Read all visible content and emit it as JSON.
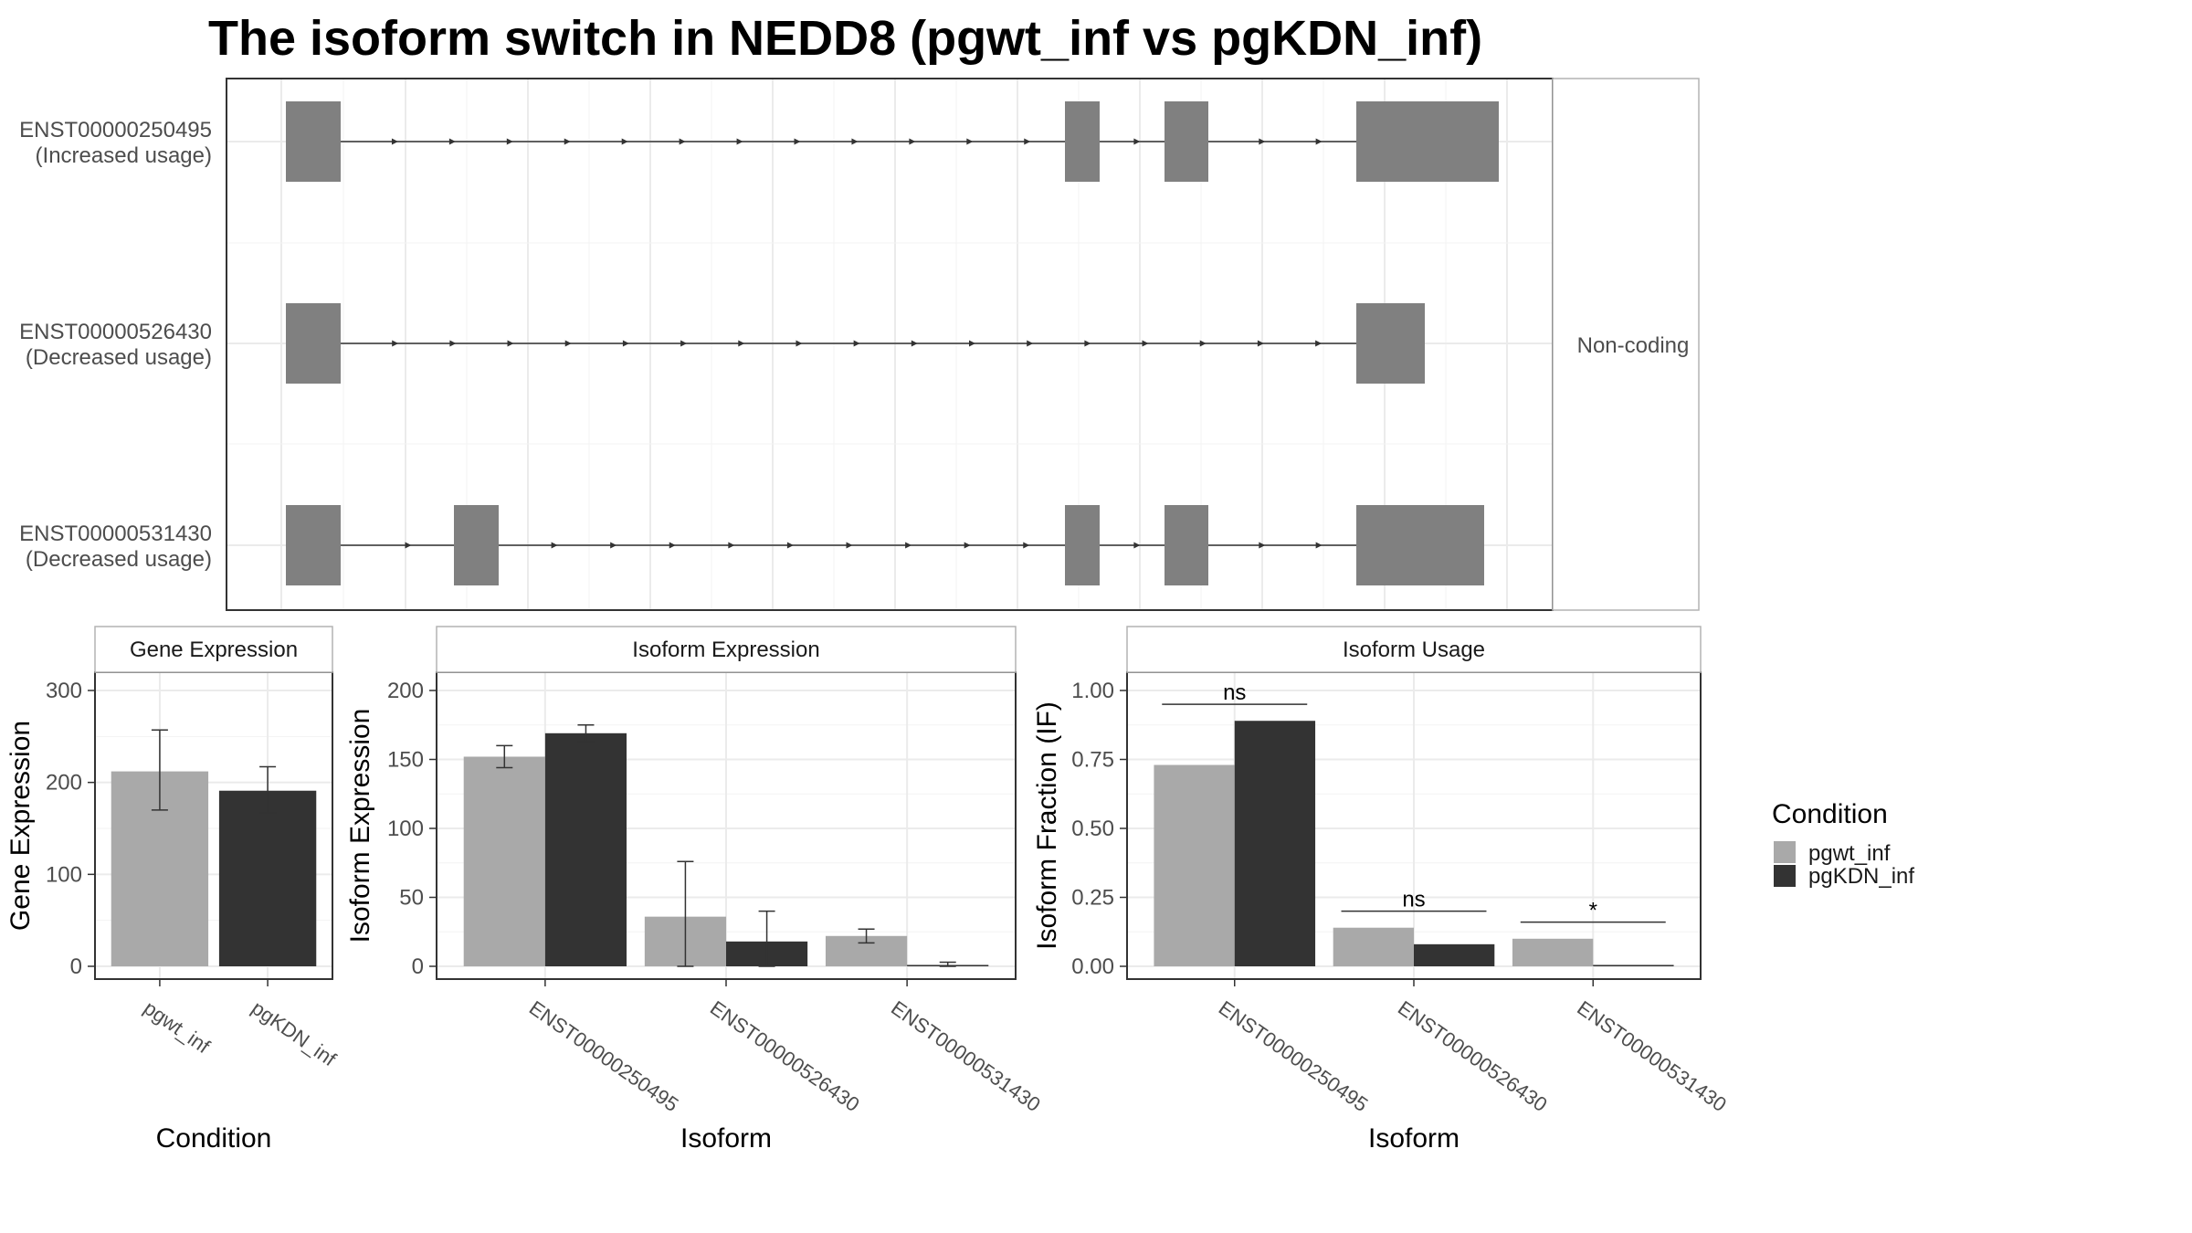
{
  "title": "The isoform switch in NEDD8 (pgwt_inf vs pgKDN_inf)",
  "colors": {
    "pgwt_inf": "#a9a9a9",
    "pgKDN_inf": "#333333",
    "exon": "#808080",
    "grid": "#ebebeb",
    "panel_border": "#333333"
  },
  "structure": {
    "side_label": "Non-coding",
    "isoforms": [
      {
        "id": "ENST00000250495",
        "status": "(Increased usage)"
      },
      {
        "id": "ENST00000526430",
        "status": "(Decreased usage)"
      },
      {
        "id": "ENST00000531430",
        "status": "(Decreased usage)"
      }
    ]
  },
  "legend": {
    "title": "Condition",
    "items": [
      {
        "label": "pgwt_inf",
        "color": "#a9a9a9"
      },
      {
        "label": "pgKDN_inf",
        "color": "#333333"
      }
    ]
  },
  "chart_data": [
    {
      "type": "bar",
      "strip": "Gene Expression",
      "xlabel": "Condition",
      "ylabel": "Gene Expression",
      "categories": [
        "pgwt_inf",
        "pgKDN_inf"
      ],
      "values": [
        212,
        191
      ],
      "error_low": [
        170,
        167
      ],
      "error_high": [
        257,
        217
      ],
      "ylim": [
        0,
        300
      ],
      "yticks": [
        0,
        100,
        200,
        300
      ]
    },
    {
      "type": "bar",
      "strip": "Isoform Expression",
      "xlabel": "Isoform",
      "ylabel": "Isoform Expression",
      "categories": [
        "ENST00000250495",
        "ENST00000526430",
        "ENST00000531430"
      ],
      "series": [
        {
          "name": "pgwt_inf",
          "values": [
            152,
            36,
            22
          ],
          "error_low": [
            144,
            0,
            17
          ],
          "error_high": [
            160,
            76,
            27
          ]
        },
        {
          "name": "pgKDN_inf",
          "values": [
            169,
            18,
            1
          ],
          "error_low": [
            163,
            0,
            0
          ],
          "error_high": [
            175,
            40,
            3
          ]
        }
      ],
      "ylim": [
        0,
        200
      ],
      "yticks": [
        0,
        50,
        100,
        150,
        200
      ]
    },
    {
      "type": "bar",
      "strip": "Isoform Usage",
      "xlabel": "Isoform",
      "ylabel": "Isoform Fraction (IF)",
      "categories": [
        "ENST00000250495",
        "ENST00000526430",
        "ENST00000531430"
      ],
      "series": [
        {
          "name": "pgwt_inf",
          "values": [
            0.73,
            0.14,
            0.1
          ]
        },
        {
          "name": "pgKDN_inf",
          "values": [
            0.89,
            0.08,
            0.005
          ]
        }
      ],
      "significance": [
        "ns",
        "ns",
        "*"
      ],
      "ylim": [
        0,
        1.0
      ],
      "yticks": [
        "0.00",
        "0.25",
        "0.50",
        "0.75",
        "1.00"
      ]
    }
  ]
}
